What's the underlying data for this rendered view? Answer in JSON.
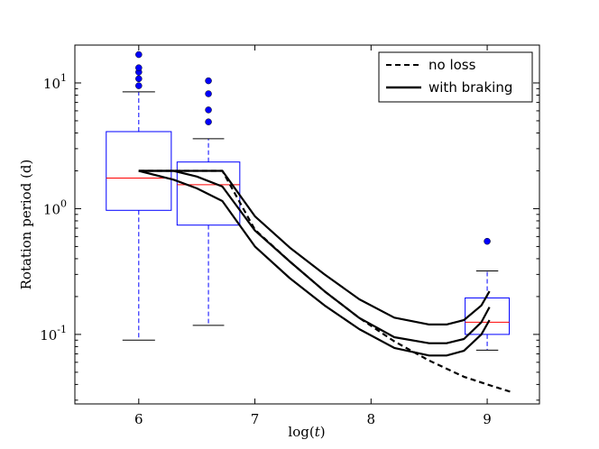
{
  "chart_data": {
    "type": "line",
    "xlabel": "log(t)",
    "ylabel": "Rotation period (d)",
    "xscale": "linear",
    "yscale": "log",
    "xlim": [
      5.45,
      9.45
    ],
    "ylim": [
      0.028,
      20
    ],
    "x_ticks": [
      {
        "value": 6,
        "label": "6"
      },
      {
        "value": 7,
        "label": "7"
      },
      {
        "value": 8,
        "label": "8"
      },
      {
        "value": 9,
        "label": "9"
      }
    ],
    "y_ticks": [
      {
        "value": 0.1,
        "base": "10",
        "exp": "-1"
      },
      {
        "value": 1,
        "base": "10",
        "exp": "0"
      },
      {
        "value": 10,
        "base": "10",
        "exp": "1"
      }
    ],
    "legend": {
      "position": "top-right",
      "entries": [
        {
          "label": "no loss",
          "style": "dashed"
        },
        {
          "label": "with braking",
          "style": "solid"
        }
      ]
    },
    "series": [
      {
        "name": "no loss",
        "style": "dashed",
        "x": [
          6.0,
          6.3,
          6.72,
          7.0,
          7.3,
          7.6,
          7.9,
          8.2,
          8.5,
          8.8,
          9.0,
          9.2
        ],
        "y": [
          2.0,
          2.0,
          2.0,
          0.68,
          0.38,
          0.22,
          0.135,
          0.088,
          0.062,
          0.046,
          0.04,
          0.035
        ]
      },
      {
        "name": "with braking (upper)",
        "style": "solid",
        "x": [
          6.0,
          6.3,
          6.72,
          7.0,
          7.3,
          7.6,
          7.9,
          8.2,
          8.5,
          8.65,
          8.8,
          8.95,
          9.02
        ],
        "y": [
          2.0,
          2.0,
          2.0,
          0.87,
          0.49,
          0.3,
          0.19,
          0.136,
          0.12,
          0.12,
          0.13,
          0.17,
          0.22
        ]
      },
      {
        "name": "with braking (middle)",
        "style": "solid",
        "x": [
          6.0,
          6.3,
          6.5,
          6.72,
          7.0,
          7.3,
          7.6,
          7.9,
          8.2,
          8.5,
          8.65,
          8.8,
          8.95,
          9.02
        ],
        "y": [
          2.0,
          2.0,
          1.8,
          1.5,
          0.67,
          0.38,
          0.22,
          0.135,
          0.095,
          0.085,
          0.085,
          0.092,
          0.125,
          0.165
        ]
      },
      {
        "name": "with braking (lower)",
        "style": "solid",
        "x": [
          6.0,
          6.3,
          6.5,
          6.72,
          7.0,
          7.3,
          7.6,
          7.9,
          8.2,
          8.5,
          8.65,
          8.8,
          8.95,
          9.02
        ],
        "y": [
          2.0,
          1.7,
          1.45,
          1.15,
          0.5,
          0.28,
          0.17,
          0.11,
          0.078,
          0.068,
          0.068,
          0.074,
          0.1,
          0.13
        ]
      }
    ],
    "boxplots": [
      {
        "x": 6.0,
        "halfwidth": 0.28,
        "whisker_low": 0.09,
        "q1": 0.97,
        "median": 1.75,
        "q3": 4.1,
        "whisker_high": 8.5,
        "outliers": [
          9.5,
          10.8,
          12.2,
          13.2,
          16.8
        ]
      },
      {
        "x": 6.6,
        "halfwidth": 0.27,
        "whisker_low": 0.118,
        "q1": 0.74,
        "median": 1.55,
        "q3": 2.35,
        "whisker_high": 3.6,
        "outliers": [
          4.9,
          6.1,
          8.2,
          10.4
        ]
      },
      {
        "x": 9.0,
        "halfwidth": 0.19,
        "whisker_low": 0.075,
        "q1": 0.1,
        "median": 0.125,
        "q3": 0.195,
        "whisker_high": 0.32,
        "outliers": [
          0.55
        ]
      }
    ],
    "colors": {
      "box": "#0000ff",
      "median": "#ff0000",
      "outlier": "#0000ff",
      "line": "#000000"
    }
  }
}
